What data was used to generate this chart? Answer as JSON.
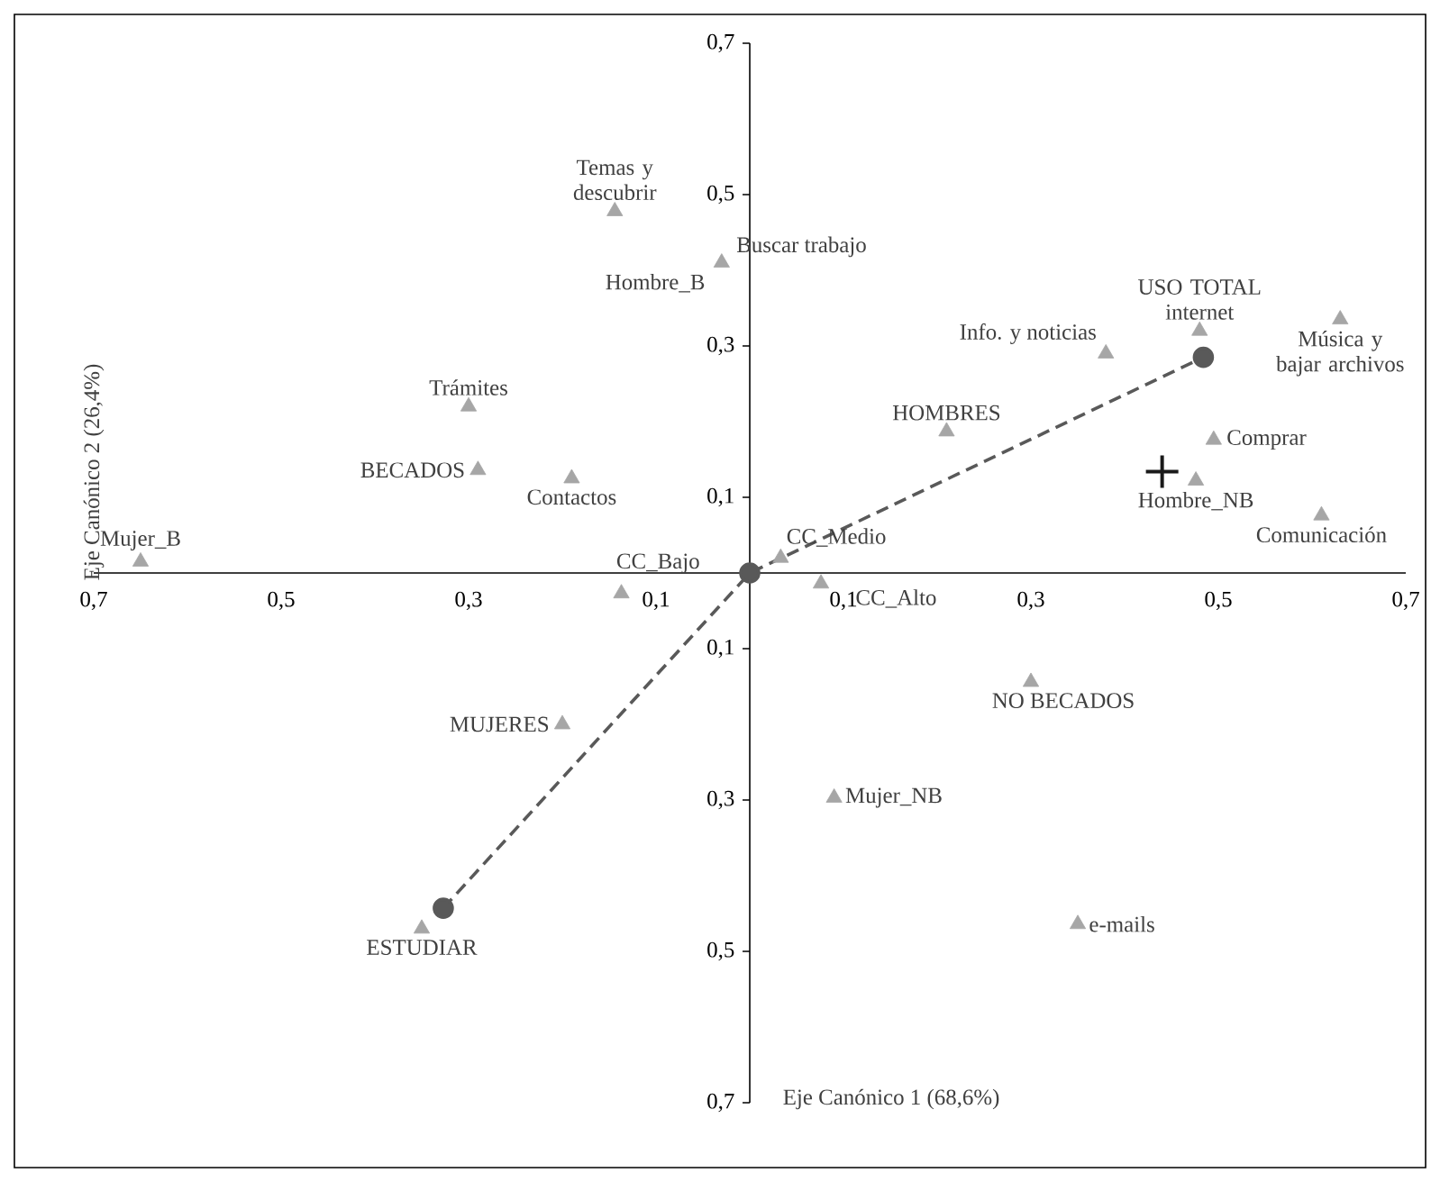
{
  "chart_data": {
    "type": "scatter",
    "xlabel": "Eje Canónico 1 (68,6%)",
    "ylabel": "Eje Canónico 2 (26,4%)",
    "xlim": [
      -0.7,
      0.7
    ],
    "ylim": [
      -0.7,
      0.7
    ],
    "xticks": [
      {
        "value": -0.7,
        "label": "0,7"
      },
      {
        "value": -0.5,
        "label": "0,5"
      },
      {
        "value": -0.3,
        "label": "0,3"
      },
      {
        "value": -0.1,
        "label": "0,1"
      },
      {
        "value": 0.1,
        "label": "0,1"
      },
      {
        "value": 0.3,
        "label": "0,3"
      },
      {
        "value": 0.5,
        "label": "0,5"
      },
      {
        "value": 0.7,
        "label": "0,7"
      }
    ],
    "yticks": [
      {
        "value": -0.7,
        "label": "0,7"
      },
      {
        "value": -0.5,
        "label": "0,5"
      },
      {
        "value": -0.3,
        "label": "0,3"
      },
      {
        "value": -0.1,
        "label": "0,1"
      },
      {
        "value": 0.1,
        "label": "0,1"
      },
      {
        "value": 0.3,
        "label": "0,3"
      },
      {
        "value": 0.5,
        "label": "0,5"
      },
      {
        "value": 0.7,
        "label": "0,7"
      }
    ],
    "series": [
      {
        "type": "scatter",
        "marker": "triangle",
        "color": "#a6a6a6",
        "x": [
          -0.65,
          -0.3,
          -0.29,
          -0.19,
          -0.144,
          -0.03,
          0.38,
          0.48,
          0.63,
          0.21,
          0.495,
          0.476,
          0.61,
          0.033,
          -0.137,
          0.076,
          -0.2,
          -0.35,
          0.3,
          0.09,
          0.35
        ],
        "values": [
          0.015,
          0.22,
          0.136,
          0.125,
          0.478,
          0.41,
          0.29,
          0.32,
          0.335,
          0.187,
          0.176,
          0.122,
          0.076,
          0.02,
          -0.027,
          -0.014,
          -0.2,
          -0.47,
          -0.144,
          -0.297,
          -0.464
        ]
      },
      {
        "type": "line",
        "marker": "circle",
        "line_style": "dashed",
        "color": "#595959",
        "x": [
          -0.327,
          0,
          0.484
        ],
        "values": [
          -0.443,
          0,
          0.285
        ]
      },
      {
        "type": "scatter",
        "marker": "cross",
        "color": "#1a1a1a",
        "x": [
          0.44
        ],
        "values": [
          0.134
        ]
      }
    ],
    "annotations": [
      {
        "text": "Mujer_B",
        "x": -0.65,
        "y": 0.015
      },
      {
        "text": "Trámites",
        "x": -0.3,
        "y": 0.22
      },
      {
        "text": "BECADOS",
        "x": -0.29,
        "y": 0.136
      },
      {
        "text": "Contactos",
        "x": -0.19,
        "y": 0.125
      },
      {
        "text": "Temas y descubrir",
        "x": -0.144,
        "y": 0.478
      },
      {
        "text": "Buscar trabajo",
        "x": -0.03,
        "y": 0.41
      },
      {
        "text": "Hombre_B",
        "x": -0.03,
        "y": 0.41
      },
      {
        "text": "Info. y noticias",
        "x": 0.38,
        "y": 0.29
      },
      {
        "text": "USO TOTAL internet",
        "x": 0.48,
        "y": 0.32
      },
      {
        "text": "Música y bajar archivos",
        "x": 0.63,
        "y": 0.335
      },
      {
        "text": "HOMBRES",
        "x": 0.21,
        "y": 0.187
      },
      {
        "text": "Comprar",
        "x": 0.495,
        "y": 0.176
      },
      {
        "text": "Hombre_NB",
        "x": 0.476,
        "y": 0.122
      },
      {
        "text": "Comunicación",
        "x": 0.61,
        "y": 0.076
      },
      {
        "text": "CC_Medio",
        "x": 0.033,
        "y": 0.02
      },
      {
        "text": "CC_Bajo",
        "x": -0.137,
        "y": -0.027
      },
      {
        "text": "CC_Alto",
        "x": 0.076,
        "y": -0.014
      },
      {
        "text": "MUJERES",
        "x": -0.2,
        "y": -0.2
      },
      {
        "text": "ESTUDIAR",
        "x": -0.35,
        "y": -0.47
      },
      {
        "text": "NO BECADOS",
        "x": 0.3,
        "y": -0.144
      },
      {
        "text": "Mujer_NB",
        "x": 0.09,
        "y": -0.297
      },
      {
        "text": "e-mails",
        "x": 0.35,
        "y": -0.464
      }
    ]
  }
}
